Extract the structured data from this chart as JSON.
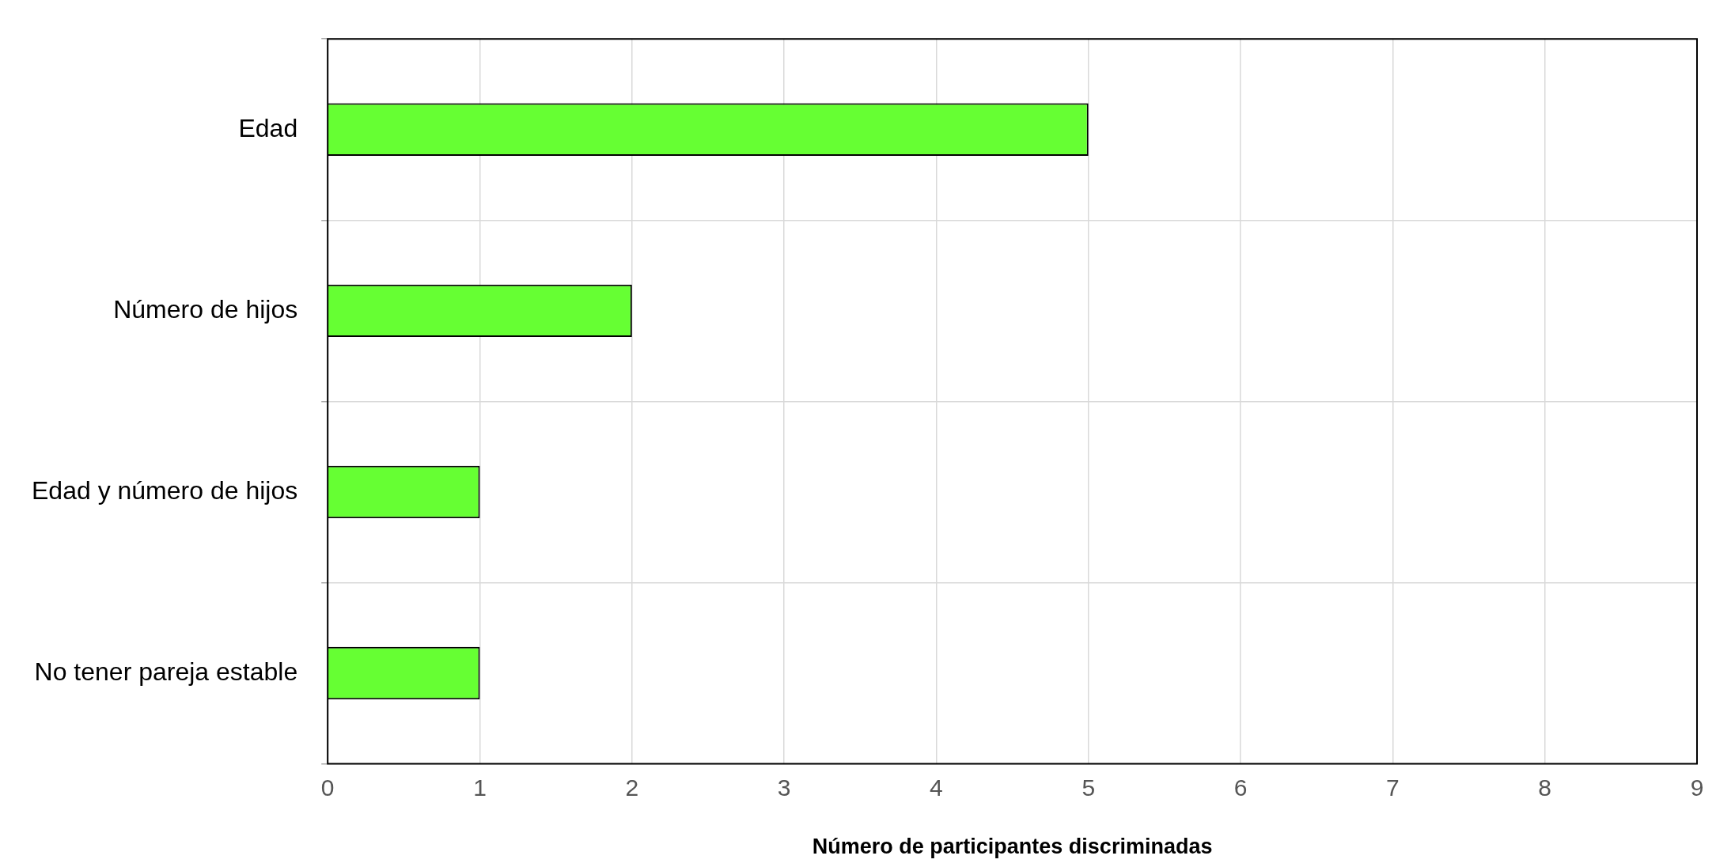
{
  "chart_data": {
    "type": "bar",
    "orientation": "horizontal",
    "xlabel": "Número de participantes discriminadas",
    "categories": [
      "Edad",
      "Número de hijos",
      "Edad y número de hijos",
      "No tener pareja estable"
    ],
    "values": [
      5,
      2,
      1,
      1
    ],
    "color": "#66ff33",
    "xlim": [
      0,
      9
    ],
    "xticks": [
      0,
      1,
      2,
      3,
      4,
      5,
      6,
      7,
      8,
      9
    ],
    "grid": true
  }
}
